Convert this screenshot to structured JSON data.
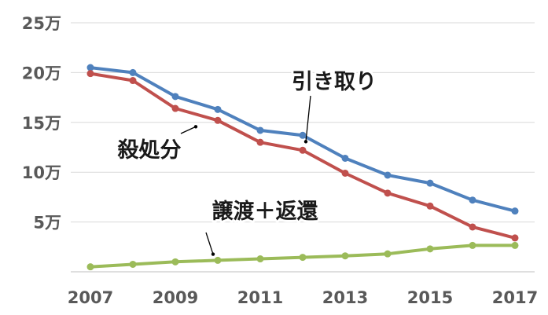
{
  "chart_data": {
    "type": "line",
    "title": "",
    "xlabel": "",
    "ylabel": "",
    "x": [
      2007,
      2008,
      2009,
      2010,
      2011,
      2012,
      2013,
      2014,
      2015,
      2016,
      2017
    ],
    "x_tick_labels": [
      "2007",
      "2009",
      "2011",
      "2013",
      "2015",
      "2017"
    ],
    "x_tick_values": [
      2007,
      2009,
      2011,
      2013,
      2015,
      2017
    ],
    "ylim": [
      0,
      250000
    ],
    "y_tick_values": [
      50000,
      100000,
      150000,
      200000,
      250000
    ],
    "y_tick_labels": [
      "5万",
      "10万",
      "15万",
      "20万",
      "25万"
    ],
    "grid": "horizontal",
    "legend": "none",
    "series": [
      {
        "name": "引き取り",
        "color": "#4f81bd",
        "values": [
          205000,
          200000,
          176000,
          163000,
          142000,
          137000,
          114000,
          97000,
          89000,
          72000,
          61000
        ]
      },
      {
        "name": "殺処分",
        "color": "#c0504d",
        "values": [
          199000,
          192000,
          164000,
          152000,
          130000,
          122000,
          99000,
          79000,
          66000,
          45000,
          34000
        ]
      },
      {
        "name": "譲渡＋返還",
        "color": "#9bbb59",
        "values": [
          5000,
          7500,
          10000,
          11500,
          13000,
          14500,
          16000,
          18000,
          23000,
          26500,
          26500
        ]
      }
    ],
    "annotations": [
      {
        "text": "引き取り",
        "series": 0,
        "point_index": 5
      },
      {
        "text": "殺処分",
        "series": 1,
        "point_index": 3
      },
      {
        "text": "譲渡＋返還",
        "series": 2,
        "point_index": 4
      }
    ]
  }
}
